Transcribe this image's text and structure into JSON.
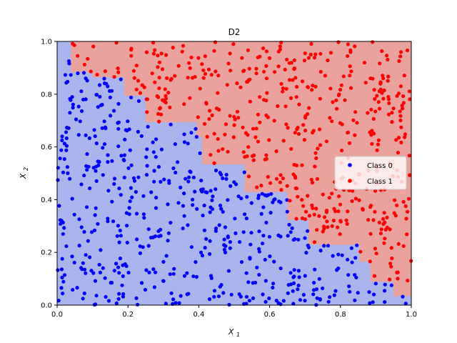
{
  "chart_data": {
    "type": "scatter",
    "title": "D2",
    "xlabel": "X1",
    "ylabel": "X2",
    "xlim": [
      0,
      1
    ],
    "ylim": [
      0,
      1
    ],
    "x_ticks": [
      "0.0",
      "0.2",
      "0.4",
      "0.6",
      "0.8",
      "1.0"
    ],
    "y_ticks": [
      "0.0",
      "0.2",
      "0.4",
      "0.6",
      "0.8",
      "1.0"
    ],
    "legend_position": "center-right",
    "grid": false,
    "colors": {
      "class0_points": "#0000ff",
      "class1_points": "#ff0000",
      "class0_region": "#a9b5ec",
      "class1_region": "#e9a29c"
    },
    "decision_boundary": {
      "description_units": "data",
      "staircase": [
        [
          0.0,
          1.0
        ],
        [
          0.04,
          1.0
        ],
        [
          0.04,
          0.885
        ],
        [
          0.1,
          0.885
        ],
        [
          0.1,
          0.865
        ],
        [
          0.19,
          0.865
        ],
        [
          0.19,
          0.795
        ],
        [
          0.25,
          0.795
        ],
        [
          0.25,
          0.695
        ],
        [
          0.395,
          0.695
        ],
        [
          0.395,
          0.64
        ],
        [
          0.41,
          0.64
        ],
        [
          0.41,
          0.535
        ],
        [
          0.53,
          0.535
        ],
        [
          0.53,
          0.43
        ],
        [
          0.65,
          0.43
        ],
        [
          0.65,
          0.325
        ],
        [
          0.71,
          0.325
        ],
        [
          0.71,
          0.23
        ],
        [
          0.855,
          0.23
        ],
        [
          0.855,
          0.165
        ],
        [
          0.885,
          0.165
        ],
        [
          0.885,
          0.09
        ],
        [
          0.95,
          0.09
        ],
        [
          0.95,
          0.035
        ],
        [
          1.0,
          0.035
        ]
      ]
    },
    "series": [
      {
        "name": "Class 0",
        "color": "#0000ff",
        "sample_count": 500
      },
      {
        "name": "Class 1",
        "color": "#ff0000",
        "sample_count": 500
      }
    ]
  }
}
